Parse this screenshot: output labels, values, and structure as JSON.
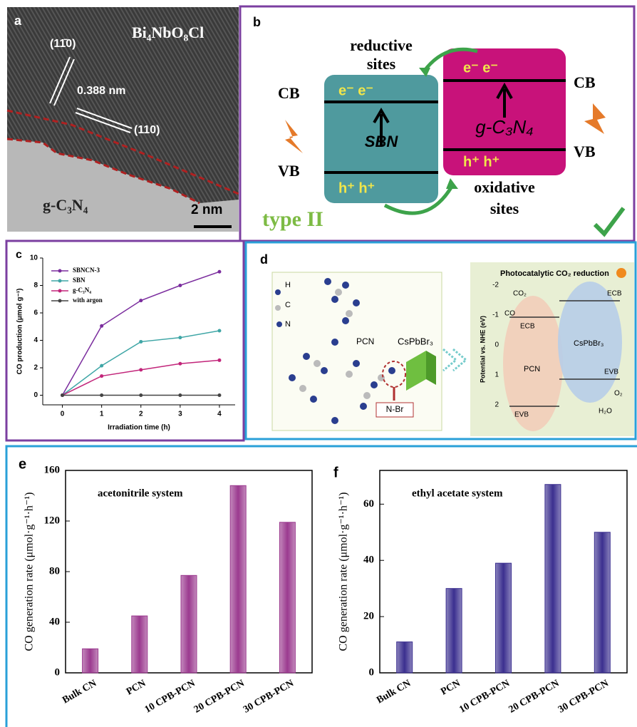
{
  "panel_a": {
    "label": "a",
    "material": "Bi₄NbO₈Cl",
    "plane1": "(11̄0)",
    "spacing": "0.388 nm",
    "plane2": "(110)",
    "substrate": "g-C₃N₄",
    "scale": "2 nm"
  },
  "panel_b": {
    "label": "b",
    "reductive": "reductive",
    "sites1": "sites",
    "oxidative": "oxidative",
    "sites2": "sites",
    "cb_left": "CB",
    "vb_left": "VB",
    "cb_right": "CB",
    "vb_right": "VB",
    "electrons": "e⁻  e⁻",
    "holes": "h⁺  h⁺",
    "sbn": "SBN",
    "gcn": "g-C₃N₄",
    "type": "type II"
  },
  "panel_d": {
    "label": "d",
    "h": "H",
    "c": "C",
    "n": "N",
    "pcn": "PCN",
    "cspbbr3": "CsPbBr₃",
    "nbr": "N-Br",
    "title": "Photocatalytic CO₂ reduction",
    "axis": "Potential vs. NHE (eV)",
    "ticks": [
      "-2",
      "-1",
      "0",
      "1",
      "2"
    ],
    "co2": "CO₂",
    "co": "CO",
    "ecb1": "ECB",
    "ecb2": "ECB",
    "evb1": "EVB",
    "evb2": "EVB",
    "pcn2": "PCN",
    "cspbbr3_2": "CsPbBr₃",
    "o2": "O₂",
    "h2o": "H₂O"
  },
  "chart_data": [
    {
      "type": "line",
      "label": "c",
      "xlabel": "Irradiation time (h)",
      "ylabel": "CO production (μmol g⁻¹)",
      "x": [
        0,
        1,
        2,
        3,
        4
      ],
      "xlim": [
        -0.5,
        4.4
      ],
      "xticks": [
        0,
        1,
        2,
        3,
        4
      ],
      "ylim": [
        -0.7,
        10
      ],
      "yticks": [
        0,
        2,
        4,
        6,
        8,
        10
      ],
      "series": [
        {
          "name": "SBNCN-3",
          "color": "#7b2d9e",
          "values": [
            0,
            5.05,
            6.9,
            8.0,
            9.0
          ]
        },
        {
          "name": "SBN",
          "color": "#3fa6a6",
          "values": [
            0,
            2.15,
            3.9,
            4.2,
            4.7
          ]
        },
        {
          "name": "g-C₃N₄",
          "color": "#c2257a",
          "values": [
            0,
            1.4,
            1.85,
            2.3,
            2.55
          ]
        },
        {
          "name": "with argon",
          "color": "#444444",
          "values": [
            0,
            0,
            0,
            0,
            0
          ]
        }
      ]
    },
    {
      "type": "bar",
      "label": "e",
      "annotation": "acetonitrile system",
      "ylabel": "CO generation rate (μmol·g⁻¹·h⁻¹)",
      "categories": [
        "Bulk CN",
        "PCN",
        "10 CPB-PCN",
        "20 CPB-PCN",
        "30 CPB-PCN"
      ],
      "values": [
        19,
        45,
        77,
        148,
        119
      ],
      "color": "#9b3a8f",
      "ylim": [
        0,
        160
      ],
      "yticks": [
        0,
        40,
        80,
        120,
        160
      ]
    },
    {
      "type": "bar",
      "label": "f",
      "annotation": "ethyl acetate system",
      "ylabel": "CO generation rate (μmol·g⁻¹·h⁻¹)",
      "categories": [
        "Bulk CN",
        "PCN",
        "10 CPB-PCN",
        "20 CPB-PCN",
        "30 CPB-PCN"
      ],
      "values": [
        11,
        30,
        39,
        67,
        50
      ],
      "color": "#3b2f8f",
      "ylim": [
        0,
        72
      ],
      "yticks": [
        0,
        20,
        40,
        60
      ]
    }
  ]
}
